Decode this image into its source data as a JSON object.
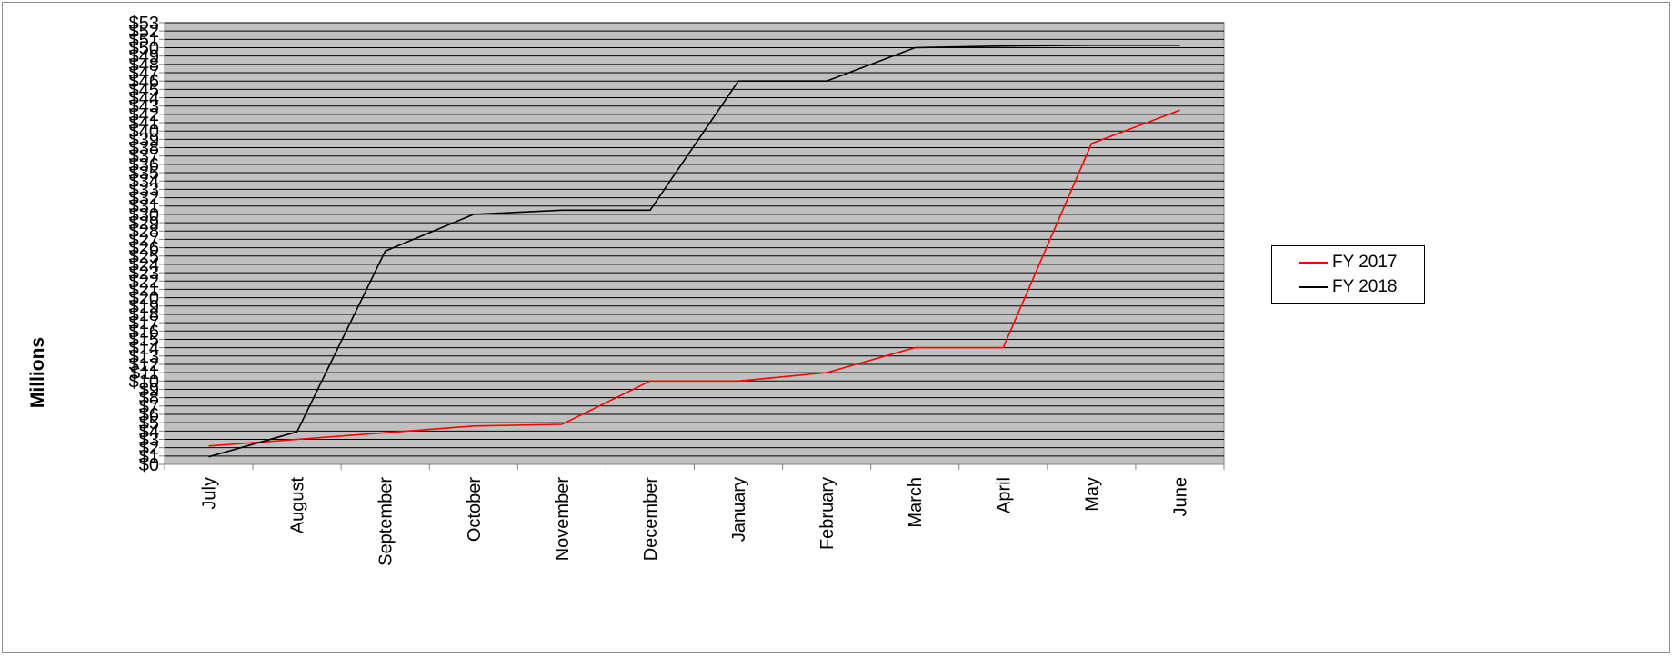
{
  "chart_data": {
    "type": "line",
    "categories": [
      "July",
      "August",
      "September",
      "October",
      "November",
      "December",
      "January",
      "February",
      "March",
      "April",
      "May",
      "June"
    ],
    "series": [
      {
        "name": "FY 2017",
        "color": "#ff0000",
        "values": [
          2.2,
          3.0,
          3.8,
          4.6,
          4.8,
          10.0,
          10.0,
          11.0,
          14.0,
          14.0,
          38.5,
          42.5
        ]
      },
      {
        "name": "FY 2018",
        "color": "#000000",
        "values": [
          0.9,
          3.9,
          25.6,
          30.0,
          30.5,
          30.5,
          46.0,
          46.0,
          50.0,
          50.2,
          50.3,
          50.3
        ]
      }
    ],
    "ylabel": "Millions",
    "ylim": [
      0,
      53
    ],
    "ytick_step": 1,
    "ytick_prefix": "$",
    "grid": true,
    "plot_background": "#c0c0c0",
    "legend_position": "right"
  }
}
